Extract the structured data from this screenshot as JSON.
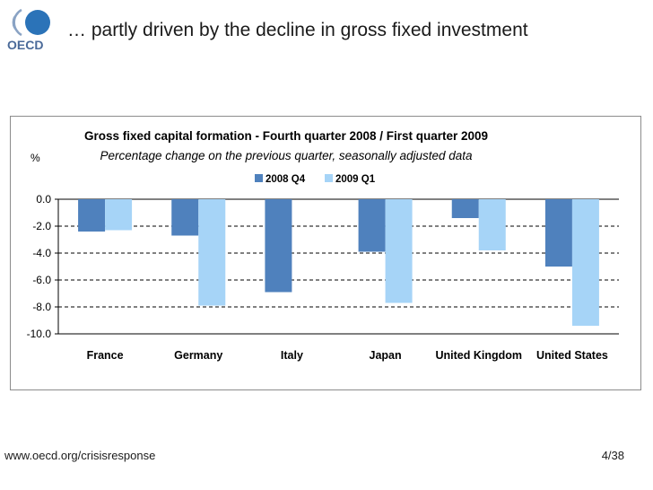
{
  "header": {
    "logo_text": "OECD",
    "title": "… partly driven by the decline in gross fixed investment"
  },
  "chart_data": {
    "type": "bar",
    "title": "Gross fixed capital formation - Fourth quarter 2008 / First quarter 2009",
    "subtitle": "Percentage change on the previous quarter, seasonally adjusted data",
    "ylabel": "%",
    "xlabel": "",
    "categories": [
      "France",
      "Germany",
      "Italy",
      "Japan",
      "United Kingdom",
      "United States"
    ],
    "series": [
      {
        "name": "2008 Q4",
        "color": "#4f81bd",
        "values": [
          -2.4,
          -2.7,
          -6.9,
          -3.9,
          -1.4,
          -5.0
        ]
      },
      {
        "name": "2009 Q1",
        "color": "#a6d4f7",
        "values": [
          -2.3,
          -7.9,
          null,
          -7.7,
          -3.8,
          -9.4
        ]
      }
    ],
    "ylim": [
      -10.0,
      0.0
    ],
    "yticks": [
      "0.0",
      "-2.0",
      "-4.0",
      "-6.0",
      "-8.0",
      "-10.0"
    ],
    "grid": true,
    "legend": "top-center"
  },
  "footer": {
    "url": "www.oecd.org/crisisresponse",
    "page": "4/38"
  }
}
